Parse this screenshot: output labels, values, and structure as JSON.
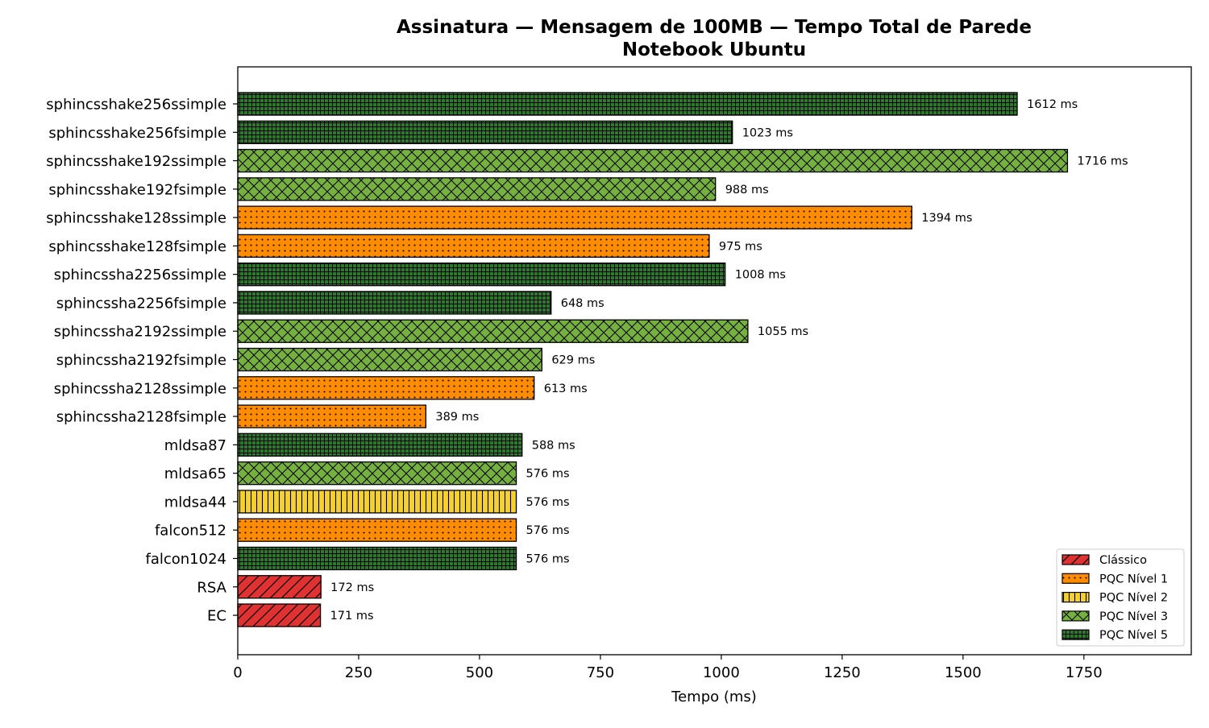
{
  "chart_data": {
    "type": "bar",
    "orientation": "horizontal",
    "title": "Assinatura — Mensagem de 100MB — Tempo Total de Parede",
    "subtitle": "Notebook Ubuntu",
    "xlabel": "Tempo (ms)",
    "ylabel": "",
    "xlim": [
      0,
      1972
    ],
    "xticks": [
      0,
      250,
      500,
      750,
      1000,
      1250,
      1500,
      1750
    ],
    "grid": false,
    "legend_position": "lower-right",
    "value_suffix": " ms",
    "categories": [
      "sphincsshake256ssimple",
      "sphincsshake256fsimple",
      "sphincsshake192ssimple",
      "sphincsshake192fsimple",
      "sphincsshake128ssimple",
      "sphincsshake128fsimple",
      "sphincssha2256ssimple",
      "sphincssha2256fsimple",
      "sphincssha2192ssimple",
      "sphincssha2192fsimple",
      "sphincssha2128ssimple",
      "sphincssha2128fsimple",
      "mldsa87",
      "mldsa65",
      "mldsa44",
      "falcon512",
      "falcon1024",
      "RSA",
      "EC"
    ],
    "values": [
      1612,
      1023,
      1716,
      988,
      1394,
      975,
      1008,
      648,
      1055,
      629,
      613,
      389,
      588,
      576,
      576,
      576,
      576,
      172,
      171
    ],
    "groups": [
      "PQC Nível 5",
      "PQC Nível 5",
      "PQC Nível 3",
      "PQC Nível 3",
      "PQC Nível 1",
      "PQC Nível 1",
      "PQC Nível 5",
      "PQC Nível 5",
      "PQC Nível 3",
      "PQC Nível 3",
      "PQC Nível 1",
      "PQC Nível 1",
      "PQC Nível 5",
      "PQC Nível 3",
      "PQC Nível 2",
      "PQC Nível 1",
      "PQC Nível 5",
      "Clássico",
      "Clássico"
    ],
    "legend": [
      {
        "name": "Clássico",
        "color": "#e03232",
        "pattern": "diagonal"
      },
      {
        "name": "PQC Nível 1",
        "color": "#ff8c00",
        "pattern": "dots"
      },
      {
        "name": "PQC Nível 2",
        "color": "#f5d032",
        "pattern": "vertical"
      },
      {
        "name": "PQC Nível 3",
        "color": "#76b041",
        "pattern": "crosshatch"
      },
      {
        "name": "PQC Nível 5",
        "color": "#2a7a2a",
        "pattern": "grid"
      }
    ]
  }
}
